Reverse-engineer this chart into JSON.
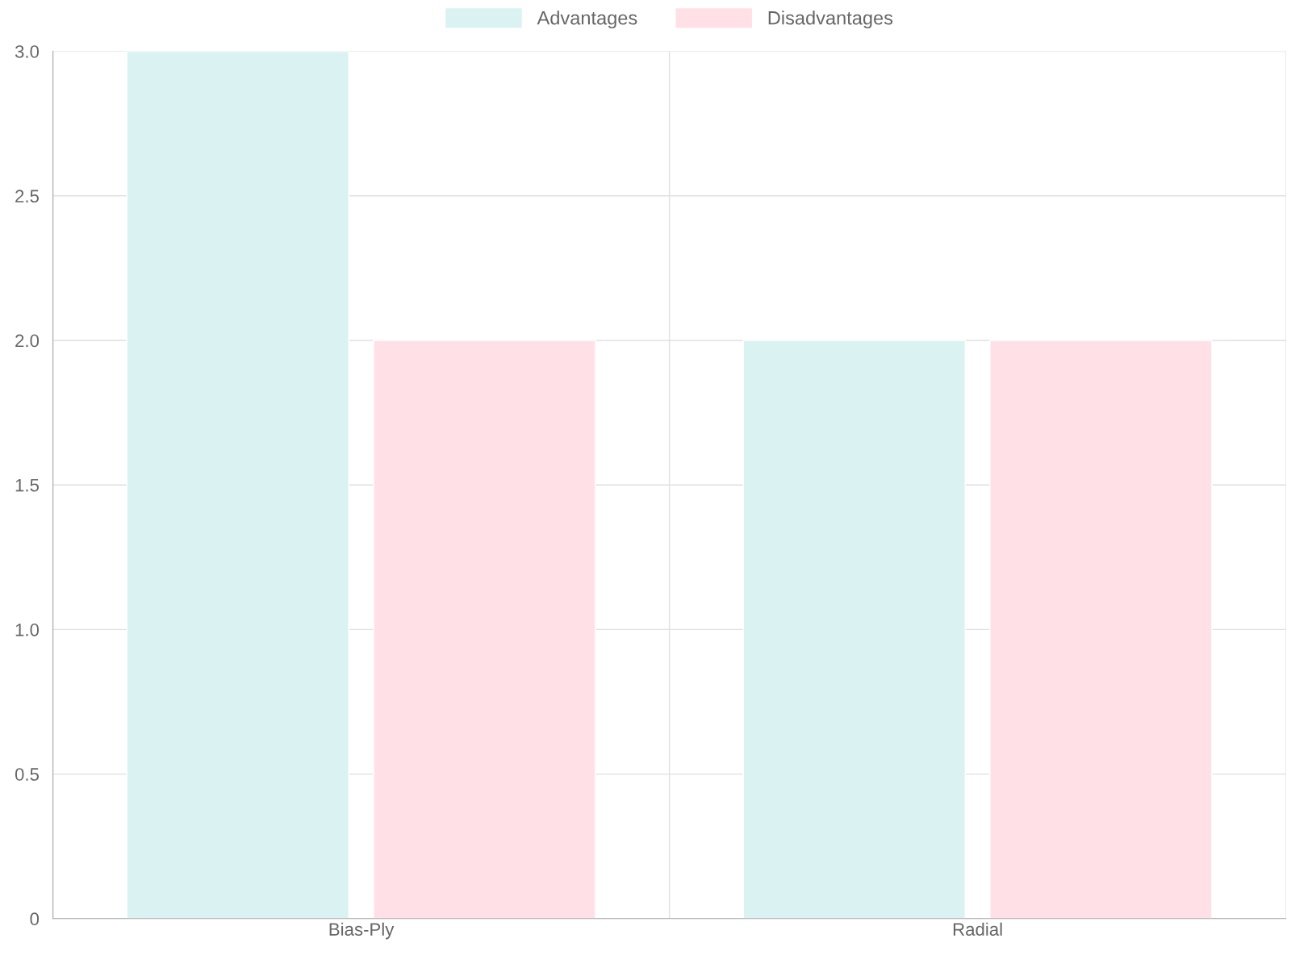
{
  "chart_data": {
    "type": "bar",
    "categories": [
      "Bias-Ply",
      "Radial"
    ],
    "series": [
      {
        "name": "Advantages",
        "color": "#dbf2f2",
        "values": [
          3,
          2
        ]
      },
      {
        "name": "Disadvantages",
        "color": "#ffe0e6",
        "values": [
          2,
          2
        ]
      }
    ],
    "ylim": [
      0,
      3
    ],
    "yticks": [
      0,
      0.5,
      {
        "value": 1,
        "label": "1.0"
      },
      1.5,
      {
        "value": 2,
        "label": "2.0"
      },
      2.5,
      {
        "value": 3,
        "label": "3.0"
      }
    ],
    "grid": true,
    "legend": "top"
  }
}
